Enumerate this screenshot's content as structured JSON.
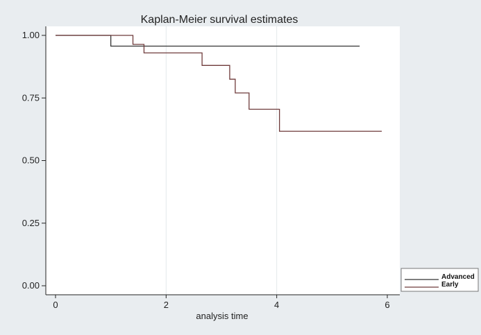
{
  "chart_data": {
    "type": "line",
    "title": "Kaplan-Meier survival estimates",
    "xlabel": "analysis time",
    "ylabel": "",
    "xlim": [
      0,
      6
    ],
    "ylim": [
      0,
      1
    ],
    "x_ticks": [
      "0",
      "2",
      "4",
      "6"
    ],
    "y_ticks": [
      "0.00",
      "0.25",
      "0.50",
      "0.75",
      "1.00"
    ],
    "grid": "vertical",
    "legend_position": "bottom-right",
    "step": true,
    "series": [
      {
        "name": "Advanced",
        "color": "#333333",
        "points": [
          [
            0,
            1.0
          ],
          [
            1.0,
            1.0
          ],
          [
            1.0,
            0.957
          ],
          [
            5.5,
            0.957
          ]
        ]
      },
      {
        "name": "Early",
        "color": "#6e3a3a",
        "points": [
          [
            0,
            1.0
          ],
          [
            1.4,
            1.0
          ],
          [
            1.4,
            0.964
          ],
          [
            1.6,
            0.964
          ],
          [
            1.6,
            0.93
          ],
          [
            2.65,
            0.93
          ],
          [
            2.65,
            0.88
          ],
          [
            3.15,
            0.88
          ],
          [
            3.15,
            0.825
          ],
          [
            3.25,
            0.825
          ],
          [
            3.25,
            0.77
          ],
          [
            3.5,
            0.77
          ],
          [
            3.5,
            0.705
          ],
          [
            4.05,
            0.705
          ],
          [
            4.05,
            0.617
          ],
          [
            5.9,
            0.617
          ]
        ]
      }
    ]
  }
}
